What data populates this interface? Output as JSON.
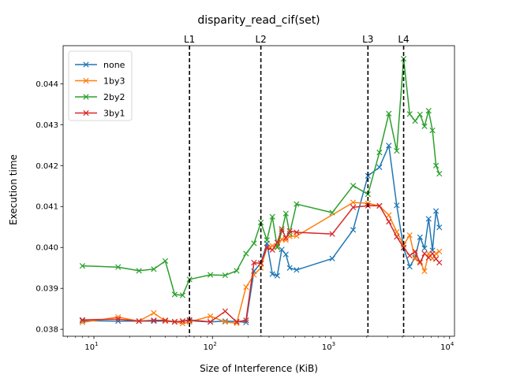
{
  "chart_data": {
    "type": "line",
    "title": "disparity_read_cif(set)",
    "xlabel": "Size of Interference (KiB)",
    "ylabel": "Execution time",
    "xscale": "log",
    "xlim": [
      5.5,
      11000
    ],
    "ylim": [
      0.03783,
      0.04493
    ],
    "x_ticks": [
      10,
      100,
      1000,
      10000
    ],
    "x_tick_labels": [
      "10^1",
      "10^2",
      "10^3",
      "10^4"
    ],
    "y_ticks": [
      0.038,
      0.039,
      0.04,
      0.041,
      0.042,
      0.043,
      0.044
    ],
    "y_tick_labels": [
      "0.038",
      "0.039",
      "0.040",
      "0.041",
      "0.042",
      "0.043",
      "0.044"
    ],
    "legend_position": "top-left",
    "grid": false,
    "vlines": [
      {
        "label": "L1",
        "x": 64
      },
      {
        "label": "L2",
        "x": 256
      },
      {
        "label": "L3",
        "x": 2048
      },
      {
        "label": "L4",
        "x": 4096
      }
    ],
    "series": [
      {
        "name": "none",
        "color": "#1f77b4",
        "points": [
          [
            8,
            0.03821
          ],
          [
            16,
            0.0382
          ],
          [
            24,
            0.0382
          ],
          [
            32,
            0.0382
          ],
          [
            40,
            0.0382
          ],
          [
            48,
            0.03818
          ],
          [
            56,
            0.0382
          ],
          [
            64,
            0.03821
          ],
          [
            96,
            0.03818
          ],
          [
            128,
            0.0382
          ],
          [
            160,
            0.03819
          ],
          [
            192,
            0.03817
          ],
          [
            224,
            0.03942
          ],
          [
            256,
            0.03962
          ],
          [
            288,
            0.0401
          ],
          [
            320,
            0.03935
          ],
          [
            352,
            0.03931
          ],
          [
            384,
            0.03995
          ],
          [
            416,
            0.03983
          ],
          [
            448,
            0.0395
          ],
          [
            512,
            0.03945
          ],
          [
            1024,
            0.03973
          ],
          [
            1536,
            0.04043
          ],
          [
            2048,
            0.04175
          ],
          [
            2560,
            0.04196
          ],
          [
            3072,
            0.04249
          ],
          [
            3584,
            0.04103
          ],
          [
            4096,
            0.03999
          ],
          [
            4608,
            0.03953
          ],
          [
            5120,
            0.03975
          ],
          [
            5632,
            0.04025
          ],
          [
            6144,
            0.03998
          ],
          [
            6656,
            0.0407
          ],
          [
            7168,
            0.03993
          ],
          [
            7680,
            0.04089
          ],
          [
            8192,
            0.04049
          ]
        ]
      },
      {
        "name": "1by3",
        "color": "#ff7f0e",
        "points": [
          [
            8,
            0.03817
          ],
          [
            16,
            0.0383
          ],
          [
            24,
            0.0382
          ],
          [
            32,
            0.0384
          ],
          [
            40,
            0.0382
          ],
          [
            48,
            0.03819
          ],
          [
            56,
            0.03814
          ],
          [
            64,
            0.03818
          ],
          [
            96,
            0.03832
          ],
          [
            128,
            0.03818
          ],
          [
            160,
            0.03815
          ],
          [
            192,
            0.03903
          ],
          [
            224,
            0.03933
          ],
          [
            256,
            0.0395
          ],
          [
            288,
            0.04
          ],
          [
            320,
            0.04004
          ],
          [
            352,
            0.04002
          ],
          [
            384,
            0.0402
          ],
          [
            416,
            0.04018
          ],
          [
            448,
            0.04027
          ],
          [
            512,
            0.04028
          ],
          [
            1536,
            0.0411
          ],
          [
            2048,
            0.04108
          ],
          [
            2560,
            0.04101
          ],
          [
            3072,
            0.04079
          ],
          [
            3584,
            0.04038
          ],
          [
            4096,
            0.04006
          ],
          [
            4608,
            0.0403
          ],
          [
            5120,
            0.03972
          ],
          [
            5632,
            0.03966
          ],
          [
            6144,
            0.03942
          ],
          [
            6656,
            0.03985
          ],
          [
            7168,
            0.03973
          ],
          [
            7680,
            0.03985
          ],
          [
            8192,
            0.0399
          ]
        ]
      },
      {
        "name": "2by2",
        "color": "#2ca02c",
        "points": [
          [
            8,
            0.03955
          ],
          [
            16,
            0.03952
          ],
          [
            24,
            0.03943
          ],
          [
            32,
            0.03947
          ],
          [
            40,
            0.03967
          ],
          [
            48,
            0.03885
          ],
          [
            56,
            0.03883
          ],
          [
            64,
            0.03922
          ],
          [
            96,
            0.03933
          ],
          [
            128,
            0.03932
          ],
          [
            160,
            0.03943
          ],
          [
            192,
            0.03985
          ],
          [
            224,
            0.0401
          ],
          [
            256,
            0.04061
          ],
          [
            288,
            0.04018
          ],
          [
            320,
            0.04075
          ],
          [
            352,
            0.04
          ],
          [
            384,
            0.0404
          ],
          [
            416,
            0.04083
          ],
          [
            448,
            0.04034
          ],
          [
            512,
            0.04106
          ],
          [
            1024,
            0.04085
          ],
          [
            1536,
            0.04151
          ],
          [
            2048,
            0.0413
          ],
          [
            2560,
            0.04232
          ],
          [
            3072,
            0.04327
          ],
          [
            3584,
            0.04236
          ],
          [
            4096,
            0.04461
          ],
          [
            4608,
            0.04326
          ],
          [
            5120,
            0.04309
          ],
          [
            5632,
            0.04325
          ],
          [
            6144,
            0.04296
          ],
          [
            6656,
            0.04334
          ],
          [
            7168,
            0.04286
          ],
          [
            7680,
            0.042
          ],
          [
            8192,
            0.0418
          ]
        ]
      },
      {
        "name": "3by1",
        "color": "#d62728",
        "points": [
          [
            8,
            0.03823
          ],
          [
            16,
            0.03825
          ],
          [
            24,
            0.0382
          ],
          [
            32,
            0.03822
          ],
          [
            40,
            0.03822
          ],
          [
            48,
            0.03818
          ],
          [
            56,
            0.0382
          ],
          [
            64,
            0.03823
          ],
          [
            96,
            0.03818
          ],
          [
            128,
            0.03844
          ],
          [
            160,
            0.03818
          ],
          [
            192,
            0.03822
          ],
          [
            224,
            0.03963
          ],
          [
            256,
            0.03961
          ],
          [
            288,
            0.04
          ],
          [
            320,
            0.03994
          ],
          [
            352,
            0.04012
          ],
          [
            384,
            0.04045
          ],
          [
            416,
            0.04023
          ],
          [
            448,
            0.0404
          ],
          [
            512,
            0.04037
          ],
          [
            1024,
            0.04033
          ],
          [
            1536,
            0.04098
          ],
          [
            2048,
            0.04102
          ],
          [
            2560,
            0.04102
          ],
          [
            3072,
            0.04063
          ],
          [
            3584,
            0.04026
          ],
          [
            4096,
            0.04
          ],
          [
            4608,
            0.0398
          ],
          [
            5120,
            0.0399
          ],
          [
            5632,
            0.03963
          ],
          [
            6144,
            0.03985
          ],
          [
            6656,
            0.03975
          ],
          [
            7168,
            0.03985
          ],
          [
            7680,
            0.03972
          ],
          [
            8192,
            0.03963
          ]
        ]
      }
    ]
  }
}
